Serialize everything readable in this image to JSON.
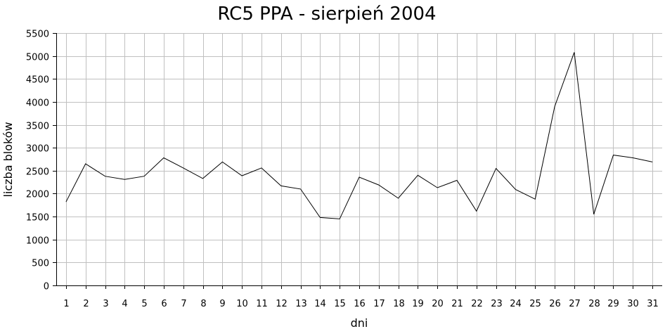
{
  "chart_data": {
    "type": "line",
    "title": "RC5 PPA - sierpień 2004",
    "xlabel": "dni",
    "ylabel": "liczba bloków",
    "x": [
      1,
      2,
      3,
      4,
      5,
      6,
      7,
      8,
      9,
      10,
      11,
      12,
      13,
      14,
      15,
      16,
      17,
      18,
      19,
      20,
      21,
      22,
      23,
      24,
      25,
      26,
      27,
      28,
      29,
      30,
      31
    ],
    "series": [
      {
        "values": [
          1820,
          2650,
          2380,
          2310,
          2380,
          2780,
          2560,
          2330,
          2690,
          2390,
          2560,
          2170,
          2100,
          1480,
          1450,
          2360,
          2190,
          1900,
          2400,
          2130,
          2290,
          1620,
          2550,
          2090,
          1880,
          3900,
          5080,
          1550,
          2840,
          2780,
          2690
        ]
      }
    ],
    "ylim": [
      0,
      5500
    ],
    "yticks": [
      0,
      500,
      1000,
      1500,
      2000,
      2500,
      3000,
      3500,
      4000,
      4500,
      5000,
      5500
    ],
    "grid": true,
    "legend": "none",
    "colors": {
      "line": "#000000",
      "grid": "#c0c0c0",
      "background": "#ffffff"
    }
  }
}
